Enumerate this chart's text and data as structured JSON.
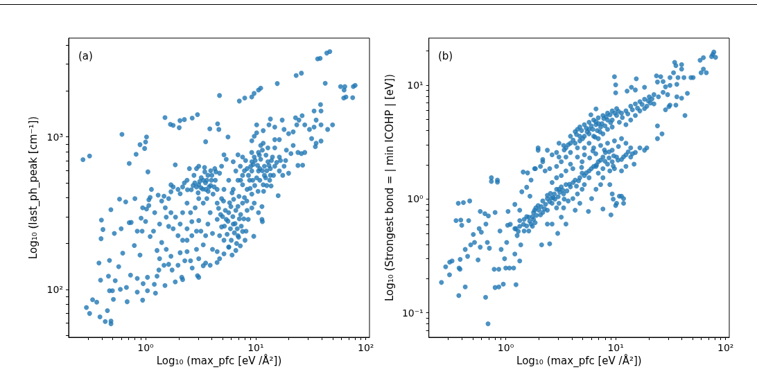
{
  "chart_data": [
    {
      "type": "scatter",
      "xlabel": "Log₁₀ (max_pfc [eV /Å²])",
      "ylabel": "Log₁₀ (last_ph_peak [cm⁻¹])",
      "annotations": [
        "(a)"
      ],
      "log": "xy",
      "marker": "circle",
      "xlim": [
        0.2,
        108
      ],
      "ylim": [
        48.5,
        4450
      ],
      "xticks": [
        {
          "value": 0.3,
          "label": null
        },
        {
          "value": 0.4,
          "label": null
        },
        {
          "value": 0.5,
          "label": null
        },
        {
          "value": 0.6,
          "label": null
        },
        {
          "value": 0.7,
          "label": null
        },
        {
          "value": 0.8,
          "label": null
        },
        {
          "value": 0.9,
          "label": null
        },
        {
          "value": 1,
          "label": "10⁰"
        },
        {
          "value": 2,
          "label": null
        },
        {
          "value": 3,
          "label": null
        },
        {
          "value": 4,
          "label": null
        },
        {
          "value": 5,
          "label": null
        },
        {
          "value": 6,
          "label": null
        },
        {
          "value": 7,
          "label": null
        },
        {
          "value": 8,
          "label": null
        },
        {
          "value": 9,
          "label": null
        },
        {
          "value": 10,
          "label": "10¹"
        },
        {
          "value": 20,
          "label": null
        },
        {
          "value": 30,
          "label": null
        },
        {
          "value": 40,
          "label": null
        },
        {
          "value": 50,
          "label": null
        },
        {
          "value": 60,
          "label": null
        },
        {
          "value": 70,
          "label": null
        },
        {
          "value": 80,
          "label": null
        },
        {
          "value": 90,
          "label": null
        },
        {
          "value": 100,
          "label": "10²"
        }
      ],
      "yticks": [
        {
          "value": 50,
          "label": null
        },
        {
          "value": 60,
          "label": null
        },
        {
          "value": 70,
          "label": null
        },
        {
          "value": 80,
          "label": null
        },
        {
          "value": 90,
          "label": null
        },
        {
          "value": 100,
          "label": "10²"
        },
        {
          "value": 200,
          "label": null
        },
        {
          "value": 300,
          "label": null
        },
        {
          "value": 400,
          "label": null
        },
        {
          "value": 500,
          "label": null
        },
        {
          "value": 600,
          "label": null
        },
        {
          "value": 700,
          "label": null
        },
        {
          "value": 800,
          "label": null
        },
        {
          "value": 900,
          "label": null
        },
        {
          "value": 1000,
          "label": "10³"
        },
        {
          "value": 2000,
          "label": null
        },
        {
          "value": 3000,
          "label": null
        },
        {
          "value": 4000,
          "label": null
        }
      ],
      "series": [
        {
          "color": "#1f77b4",
          "x": [
            0.27,
            0.31,
            0.61,
            0.71,
            0.82,
            0.89,
            0.98,
            1.0,
            1.02,
            1.05,
            1.5,
            1.68,
            1.78,
            2.02,
            2.05,
            2.25,
            2.65,
            2.96,
            3.83,
            3.51,
            1.86,
            4.51,
            4.63,
            4.69,
            5.6,
            7.1,
            7.95,
            9.2,
            9.67,
            10.6,
            11.1,
            15.7,
            23.3,
            26,
            42.8,
            36.5,
            38.5,
            44.2,
            47.1,
            59,
            63.5,
            64.5,
            77,
            80,
            63,
            66,
            76,
            38.8,
            0.29,
            0.31,
            0.33,
            0.36,
            0.377,
            0.385,
            0.39,
            0.397,
            0.41,
            0.394,
            0.43,
            0.45,
            0.46,
            0.47,
            0.485,
            0.485,
            0.47,
            0.484,
            0.5,
            0.52,
            0.53,
            0.51,
            0.57,
            0.58,
            0.6,
            0.59,
            0.62,
            0.66,
            0.67,
            0.68,
            0.73,
            0.74,
            0.79,
            0.8,
            0.84,
            0.84,
            0.89,
            0.94,
            0.94,
            0.95,
            1.04,
            1.04,
            1.07,
            1.13,
            1.23,
            1.2,
            1.27,
            1.32,
            0.71,
            0.84,
            0.91,
            0.93,
            1.0,
            1.02,
            1.07,
            1.1,
            1.1,
            1.18,
            1.21,
            1.3,
            1.34,
            1.27,
            1.34,
            1.4,
            1.47,
            1.54,
            1.62,
            1.7,
            1.74,
            1.86,
            1.97,
            2.13,
            2.17,
            2.06,
            2.27,
            2.38,
            2.56,
            2.65,
            2.96,
            3.04,
            3.34,
            2.9,
            2.9,
            3.04,
            3.18,
            3.34,
            3.51,
            3.77,
            3.96,
            3.68,
            3.43,
            2.9,
            2.5,
            2.38,
            2.17,
            2.06,
            1.97,
            1.78,
            1.7,
            1.62,
            1.47,
            1.4,
            1.51,
            1.7,
            1.87,
            2.06,
            2.17,
            2.38,
            2.56,
            2.63,
            2.82,
            3.04,
            3.34,
            3.6,
            4.1,
            4.47,
            4.47,
            4.9,
            5.15,
            5.69,
            4.7,
            4.9,
            4.25,
            5.4,
            5.15,
            6.25,
            6.9,
            7.6,
            7.25,
            6.6,
            7.6,
            8.35,
            9.22,
            9.7,
            10.6,
            11.1,
            12,
            12.9,
            13.6,
            14.2,
            14.9,
            16.4,
            18.1,
            19.9,
            16.4,
            19,
            20.9,
            14.9,
            16.4,
            18.1,
            19.9,
            21.9,
            23.6,
            23,
            24.7,
            26.4,
            27.9,
            30.8,
            32.2,
            35.4,
            39.2,
            33.9,
            35.4,
            39.2,
            33.9,
            39.2,
            45,
            49.9,
            26.7,
            24.2,
            26,
            21.9,
            24.2,
            27.9,
            10.2,
            10.2,
            11.7,
            13.2,
            14.9,
            17.4,
            13.6,
            9.7,
            9.22,
            11.1,
            12.9,
            14.9,
            13.8,
            16,
            11.4,
            11.4,
            10.6,
            9.7,
            9.22,
            8.35,
            7.6,
            8.8,
            10.2,
            11.7,
            12.3,
            13.6,
            10.6,
            9.22,
            6.9,
            6.25,
            7.05,
            7.6,
            8.35,
            9.22,
            8.55,
            9.6,
            8.17,
            7.25,
            6.9,
            6.25,
            5.69,
            5.95,
            6.6,
            5.4,
            4.9,
            4.7,
            5.15,
            5.69,
            6.1,
            5.15,
            4.7,
            4.46,
            4.05,
            4.05,
            4.47,
            3.86,
            3.68,
            3.51,
            3.34,
            3.18,
            3.04,
            2.9,
            2.63,
            2.38,
            2.17,
            2.38,
            1.97,
            1.78,
            1.62,
            1.54,
            3.04,
            3.51,
            3.86,
            4.47,
            1.7,
            3.04,
            9.2,
            11.7,
            34.8,
            1.5,
            11.5,
            2.7,
            2.8,
            3.1,
            3.3,
            3.5,
            3.7,
            3.9,
            4.2,
            4.3,
            2.6,
            3.0,
            3.2,
            3.6,
            4.0,
            2.75,
            3.45,
            4.35,
            3.9,
            2.4,
            2.25,
            5,
            5.3,
            5.6,
            5.9,
            6.2,
            6.5,
            6.8,
            7.1,
            7.4,
            5.5,
            6,
            6.4,
            6.7,
            7,
            5.8,
            6.3,
            6.9,
            7.3,
            7.8,
            5.2,
            4.8,
            5.7,
            6.6,
            7.6,
            8,
            4.6,
            5.1,
            7.9,
            8.3,
            6.1,
            7.9,
            8.6,
            9,
            9.5,
            9.9,
            10.4,
            10.9,
            11.5,
            12,
            12.6,
            13.2,
            13.9,
            10.8,
            11.5,
            12.4,
            9.4,
            10.9,
            11.8,
            12.6,
            13.4,
            14.5,
            15.5,
            16.8,
            17.6,
            18.7,
            8.9,
            9.8,
            10.5,
            7.3,
            8.1
          ],
          "values": [
            710,
            750,
            1040,
            670,
            770,
            890,
            840,
            926,
            1000,
            590,
            1340,
            1210,
            1190,
            1150,
            1280,
            1300,
            1330,
            1400,
            1130,
            930,
            656,
            1220,
            1120,
            1870,
            1000,
            1720,
            1800,
            1830,
            1930,
            2030,
            2090,
            2240,
            2530,
            2620,
            2250,
            3250,
            3280,
            3550,
            3630,
            2140,
            2030,
            2140,
            2140,
            2180,
            1800,
            1830,
            1810,
            1630,
            76,
            69.5,
            85.5,
            82.5,
            149,
            66,
            115,
            285,
            247,
            215,
            61.5,
            72.6,
            122,
            155,
            62,
            59.5,
            98,
            333,
            98,
            233,
            114,
            86,
            141,
            391,
            250,
            100,
            173,
            375,
            103,
            83,
            124,
            275,
            194,
            394,
            118,
            96,
            168,
            85,
            343,
            109,
            120,
            98,
            387,
            453,
            94.5,
            108,
            122,
            134,
            274,
            241,
            293,
            241,
            279,
            337,
            355,
            222,
            401,
            241,
            319,
            415,
            268,
            180,
            159,
            203,
            144,
            183,
            146,
            165,
            134,
            112,
            144,
            120,
            116,
            174,
            154,
            177,
            154,
            138,
            123,
            120,
            143,
            183,
            470,
            486,
            465,
            520,
            453,
            470,
            520,
            560,
            631,
            620,
            620,
            520,
            470,
            424,
            453,
            470,
            437,
            394,
            409,
            380,
            343,
            319,
            298,
            268,
            319,
            368,
            319,
            278,
            343,
            394,
            368,
            394,
            422,
            453,
            368,
            394,
            453,
            520,
            578,
            642,
            620,
            714,
            764,
            688,
            764,
            738,
            642,
            598,
            560,
            620,
            688,
            738,
            791,
            714,
            642,
            688,
            620,
            738,
            642,
            598,
            642,
            578,
            738,
            820,
            778,
            848,
            960,
            1120,
            1050,
            1080,
            1200,
            1335,
            1290,
            1380,
            1200,
            1120,
            975,
            910,
            940,
            1480,
            1290,
            1480,
            1160,
            1200,
            1120,
            1200,
            653,
            650,
            777,
            880,
            791,
            791,
            1200,
            1065,
            1100,
            1200,
            1160,
            1290,
            1310,
            1010,
            943,
            879,
            848,
            960,
            477,
            412,
            349,
            288,
            319,
            368,
            422,
            453,
            486,
            520,
            539,
            486,
            539,
            560,
            598,
            598,
            520,
            453,
            408,
            368,
            330,
            342,
            288,
            223,
            241,
            193,
            225,
            268,
            319,
            349,
            330,
            288,
            257,
            225,
            210,
            189,
            168,
            171,
            159,
            150,
            183,
            233,
            288,
            319,
            268,
            225,
            196,
            241,
            283,
            241,
            225,
            250,
            210,
            210,
            225,
            250,
            259,
            298,
            159,
            149,
            144,
            177,
            485,
            643,
            791,
            910,
            863,
            106,
            278,
            480,
            500,
            510,
            455,
            500,
            440,
            480,
            470,
            520,
            450,
            430,
            540,
            520,
            560,
            560,
            590,
            590,
            600,
            450,
            500,
            300,
            330,
            280,
            250,
            300,
            270,
            250,
            290,
            260,
            230,
            210,
            235,
            200,
            220,
            370,
            390,
            350,
            310,
            290,
            260,
            310,
            190,
            180,
            240,
            210,
            340,
            380,
            400,
            380,
            430,
            600,
            560,
            640,
            660,
            700,
            650,
            620,
            600,
            560,
            600,
            650,
            700,
            760,
            820,
            760,
            520,
            520,
            440,
            480,
            520,
            560,
            680,
            700,
            560,
            700,
            460,
            480,
            440,
            520,
            700
          ]
        }
      ]
    },
    {
      "type": "scatter",
      "xlabel": "Log₁₀ (max_pfc [eV /Å²])",
      "ylabel": "Log₁₀ (Strongest bond = | min ICOHP | [eV])",
      "annotations": [
        "(b)"
      ],
      "log": "xy",
      "marker": "circle",
      "xlim": [
        0.2,
        108
      ],
      "ylim": [
        0.061,
        26
      ],
      "xticks": [
        {
          "value": 0.3,
          "label": null
        },
        {
          "value": 0.4,
          "label": null
        },
        {
          "value": 0.5,
          "label": null
        },
        {
          "value": 0.6,
          "label": null
        },
        {
          "value": 0.7,
          "label": null
        },
        {
          "value": 0.8,
          "label": null
        },
        {
          "value": 0.9,
          "label": null
        },
        {
          "value": 1,
          "label": "10⁰"
        },
        {
          "value": 2,
          "label": null
        },
        {
          "value": 3,
          "label": null
        },
        {
          "value": 4,
          "label": null
        },
        {
          "value": 5,
          "label": null
        },
        {
          "value": 6,
          "label": null
        },
        {
          "value": 7,
          "label": null
        },
        {
          "value": 8,
          "label": null
        },
        {
          "value": 9,
          "label": null
        },
        {
          "value": 10,
          "label": "10¹"
        },
        {
          "value": 20,
          "label": null
        },
        {
          "value": 30,
          "label": null
        },
        {
          "value": 40,
          "label": null
        },
        {
          "value": 50,
          "label": null
        },
        {
          "value": 60,
          "label": null
        },
        {
          "value": 70,
          "label": null
        },
        {
          "value": 80,
          "label": null
        },
        {
          "value": 90,
          "label": null
        },
        {
          "value": 100,
          "label": "10²"
        }
      ],
      "yticks": [
        {
          "value": 0.07,
          "label": null
        },
        {
          "value": 0.08,
          "label": null
        },
        {
          "value": 0.09,
          "label": null
        },
        {
          "value": 0.1,
          "label": "10⁻¹"
        },
        {
          "value": 0.2,
          "label": null
        },
        {
          "value": 0.3,
          "label": null
        },
        {
          "value": 0.4,
          "label": null
        },
        {
          "value": 0.5,
          "label": null
        },
        {
          "value": 0.6,
          "label": null
        },
        {
          "value": 0.7,
          "label": null
        },
        {
          "value": 0.8,
          "label": null
        },
        {
          "value": 0.9,
          "label": null
        },
        {
          "value": 1,
          "label": "10⁰"
        },
        {
          "value": 2,
          "label": null
        },
        {
          "value": 3,
          "label": null
        },
        {
          "value": 4,
          "label": null
        },
        {
          "value": 5,
          "label": null
        },
        {
          "value": 6,
          "label": null
        },
        {
          "value": 7,
          "label": null
        },
        {
          "value": 8,
          "label": null
        },
        {
          "value": 9,
          "label": null
        },
        {
          "value": 10,
          "label": "10¹"
        },
        {
          "value": 20,
          "label": null
        }
      ],
      "series": [
        {
          "color": "#1f77b4",
          "x": [
            0.26,
            0.284,
            0.308,
            0.309,
            0.325,
            0.353,
            0.37,
            0.376,
            0.384,
            0.374,
            0.385,
            0.39,
            0.398,
            0.412,
            0.428,
            0.428,
            0.46,
            0.47,
            0.45,
            0.48,
            0.507,
            0.52,
            0.56,
            0.573,
            0.586,
            0.6,
            0.586,
            0.646,
            0.656,
            0.66,
            0.69,
            0.695,
            0.68,
            0.71,
            0.74,
            0.74,
            0.785,
            0.8,
            0.84,
            0.84,
            0.865,
            0.865,
            0.8,
            0.886,
            0.908,
            0.95,
            0.976,
            1.0,
            1.02,
            1.04,
            1.05,
            1.08,
            1.18,
            1.24,
            1.21,
            1.27,
            1.34,
            1.37,
            1.24,
            1.34,
            1.21,
            1.34,
            1.4,
            1.44,
            1.58,
            1.55,
            1.66,
            1.7,
            1.75,
            1.83,
            1.86,
            1.97,
            2.17,
            2.12,
            2.51,
            2.39,
            2.64,
            2.97,
            3.2,
            3.53,
            3.36,
            3.05,
            2.7,
            2.39,
            1.1,
            1.21,
            1.34,
            1.47,
            1.62,
            1.7,
            1.79,
            1.88,
            1.97,
            2.17,
            2.39,
            2.64,
            2.77,
            2.9,
            3.2,
            3.53,
            3.88,
            4.28,
            4.72,
            4.95,
            5.19,
            5.73,
            6.31,
            6.95,
            7.66,
            8.44,
            9.3,
            10.2,
            11.3,
            12.4,
            13.7,
            15.1,
            16.6,
            18.3,
            19.2,
            14.7,
            12.4,
            11.3,
            9.75,
            8.85,
            7.66,
            6.95,
            6.62,
            5.73,
            5.19,
            4.95,
            4.49,
            4.08,
            3.7,
            3.36,
            3.05,
            2.9,
            2.39,
            2.17,
            2.07,
            1.79,
            1.47,
            1.62,
            8.85,
            9.3,
            7.66,
            7.3,
            10.8,
            11.8,
            10.2,
            9.06,
            6.62,
            6.04,
            4.72,
            4.28,
            1.97,
            2.17,
            2.39,
            2.64,
            2.9,
            3.05,
            3.36,
            3.53,
            3.88,
            4.28,
            4.72,
            5.19,
            5.73,
            6.31,
            6.95,
            7.66,
            8.44,
            9.3,
            10.2,
            11.3,
            12.4,
            13.7,
            15.1,
            16.6,
            18.3,
            20.2,
            22.3,
            24.5,
            27,
            29.7,
            22.3,
            19.2,
            16.6,
            15.1,
            13.7,
            12.4,
            10.8,
            9.3,
            8.44,
            7.66,
            6.95,
            6.31,
            5.73,
            5.19,
            4.72,
            4.28,
            3.88,
            4.49,
            5.73,
            7.3,
            8.44,
            6.62,
            9.3,
            10.2,
            4.72,
            5.73,
            6.31,
            5.19,
            4.49,
            3.88,
            3.53,
            3.05,
            2.9,
            3.2,
            3.88,
            4.49,
            4.95,
            4.08,
            3.53,
            3.2,
            2.9,
            2.51,
            2.28,
            2.07,
            1.83,
            2.64,
            7.3,
            8.44,
            9.75,
            11.3,
            12.4,
            13.7,
            9.3,
            8.06,
            9.75,
            10,
            10,
            15.4,
            13.9,
            12.7,
            6.62,
            5.95,
            18.3,
            23.5,
            25.7,
            24,
            31.2,
            34.4,
            35.3,
            33.6,
            39.8,
            39.8,
            36.9,
            36,
            41.8,
            48.4,
            50.7,
            36,
            39.8,
            44.9,
            42.7,
            31.2,
            35.3,
            24,
            24,
            26.4,
            58.6,
            62.8,
            62.8,
            66.8,
            59.8,
            76.5,
            78.2,
            81.1,
            74.6,
            28.4,
            30.5,
            20.7,
            18.3,
            15.1,
            28.4,
            31.2,
            27,
            9.5,
            10,
            11.3,
            11.8,
            7.66,
            5.65,
            4.4,
            4.9,
            5.4,
            6.0,
            6.6,
            7.0,
            7.8,
            8.2,
            8.9,
            9.8,
            10.6,
            5.0,
            5.5,
            6.2,
            6.8,
            7.5,
            8.0,
            9.0,
            11.5,
            12.9,
            14.2,
            15.8,
            17.4,
            19.8,
            21.4,
            4.1,
            3.7,
            3.4,
            6.5,
            7.2,
            1.3,
            1.45,
            1.55,
            1.65,
            1.75,
            1.9,
            2.0,
            2.1,
            2.3,
            2.5,
            2.6,
            2.8,
            3.0,
            3.1,
            3.3,
            3.6,
            3.8,
            4.1,
            4.4,
            4.6,
            1.55,
            1.85,
            2.25,
            2.55,
            3.4,
            5.4,
            6,
            6.7,
            7.3,
            8.0,
            8.7,
            9.6,
            10.5,
            11.8,
            13,
            14.2,
            5.8,
            6.6,
            7.9,
            8.7,
            10.6,
            4.9,
            5.2,
            6.2,
            9.5
          ],
          "values": [
            0.185,
            0.254,
            0.216,
            0.279,
            0.286,
            0.647,
            0.919,
            0.248,
            0.242,
            0.142,
            0.295,
            0.654,
            0.589,
            0.932,
            0.169,
            0.361,
            0.647,
            0.963,
            0.314,
            0.396,
            0.489,
            0.416,
            0.292,
            0.55,
            0.78,
            0.512,
            0.378,
            0.745,
            0.137,
            0.604,
            0.0802,
            0.711,
            0.416,
            0.37,
            1.54,
            1.43,
            0.242,
            0.167,
            1.47,
            1.41,
            0.242,
            0.169,
            0.763,
            0.525,
            0.361,
            0.179,
            0.299,
            0.248,
            0.416,
            0.589,
            0.78,
            0.248,
            0.248,
            0.177,
            0.329,
            0.478,
            0.286,
            0.396,
            0.55,
            0.647,
            0.898,
            0.799,
            1.16,
            1.73,
            1.7,
            1.27,
            1.06,
            1.47,
            0.576,
            0.799,
            1.85,
            2.69,
            2.23,
            0.396,
            0.405,
            0.604,
            0.604,
            0.5,
            0.694,
            0.604,
            0.837,
            1.22,
            1.03,
            1.08,
            0.6,
            0.55,
            0.576,
            0.663,
            0.694,
            0.604,
            0.763,
            0.837,
            0.877,
            0.963,
            1.01,
            0.919,
            1.11,
            1.22,
            1.28,
            1.34,
            1.28,
            1.47,
            1.54,
            1.69,
            1.61,
            1.77,
            1.94,
            2.13,
            2.34,
            2.03,
            2.13,
            2.34,
            2.23,
            2.45,
            2.34,
            2.57,
            2.82,
            2.69,
            2.82,
            2.03,
            1.94,
            1.77,
            1.85,
            1.77,
            1.85,
            1.69,
            1.94,
            1.54,
            1.34,
            1.22,
            1.11,
            1.01,
            0.963,
            1.11,
            0.919,
            0.837,
            0.799,
            0.763,
            0.727,
            0.663,
            0.525,
            0.525,
            1.34,
            1.11,
            1.54,
            1.34,
            1.06,
            1.01,
            0.919,
            0.727,
            1.22,
            1.01,
            0.919,
            0.799,
            2.82,
            2.13,
            2.69,
            2.45,
            2.57,
            3.1,
            2.96,
            2.82,
            3.57,
            3.92,
            4.3,
            4.51,
            4.73,
            4.95,
            5.18,
            5.43,
            5.69,
            5.96,
            6.25,
            5.69,
            5.96,
            6.55,
            6.86,
            7.19,
            7.54,
            7.92,
            8.28,
            7.92,
            8.68,
            8.28,
            6.86,
            6.55,
            5.96,
            5.43,
            4.95,
            4.51,
            4.73,
            4.3,
            4.1,
            3.74,
            3.4,
            3.57,
            3.74,
            3.57,
            3.25,
            3.1,
            3.1,
            4.1,
            4.1,
            4.3,
            4.95,
            4.51,
            4.95,
            5.43,
            3.57,
            3.1,
            2.82,
            2.82,
            2.82,
            2.57,
            2.34,
            2.34,
            1.94,
            2.13,
            2.03,
            2.34,
            2.13,
            1.85,
            1.77,
            1.61,
            1.54,
            1.85,
            1.77,
            1.94,
            1.85,
            1.4,
            2.96,
            3.1,
            3.25,
            3.4,
            3.1,
            2.82,
            2.69,
            2.57,
            11.9,
            10.1,
            8.6,
            11.4,
            9.6,
            8.9,
            6.2,
            5.5,
            9.6,
            12.1,
            11.9,
            10.7,
            11.7,
            15.9,
            14.9,
            12.9,
            15.2,
            13.9,
            11.7,
            10.2,
            11.7,
            11.7,
            11.7,
            7.92,
            7.7,
            8.5,
            5.43,
            6.7,
            6.7,
            4.4,
            3.4,
            3.74,
            16.6,
            17.5,
            13.9,
            12.9,
            12.9,
            18.7,
            19.6,
            17.6,
            17.9,
            6.1,
            6.5,
            7,
            6.25,
            9.1,
            9.7,
            10,
            10.8,
            1.0,
            0.877,
            1.06,
            0.919,
            0.818,
            0.78,
            3.7,
            4.0,
            4.2,
            4.4,
            4.8,
            4.6,
            5.1,
            5.3,
            5.5,
            5.7,
            5.9,
            3.4,
            3.9,
            4.1,
            4.0,
            4.6,
            4.4,
            4.7,
            5.2,
            5.6,
            6.1,
            6.3,
            6.8,
            7.3,
            7.6,
            3.3,
            3.0,
            2.7,
            3.5,
            3.9,
            0.52,
            0.6,
            0.58,
            0.64,
            0.7,
            0.72,
            0.8,
            0.86,
            0.9,
            0.95,
            1.02,
            1.0,
            1.05,
            1.15,
            1.2,
            1.18,
            1.35,
            1.4,
            1.3,
            1.45,
            0.7,
            0.62,
            0.82,
            1.12,
            1.0,
            1.7,
            1.85,
            2.0,
            2.2,
            2.15,
            2.3,
            2.4,
            2.2,
            2.35,
            2.6,
            2.5,
            2.3,
            2.5,
            2.7,
            2.6,
            2.9,
            1.9,
            2.45,
            2.65,
            1.95
          ]
        }
      ]
    }
  ]
}
